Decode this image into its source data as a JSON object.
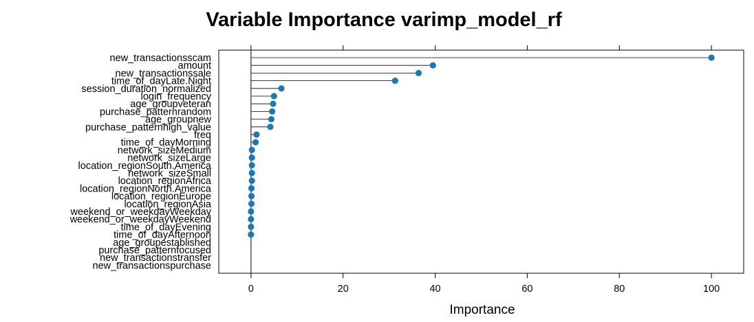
{
  "chart_data": {
    "type": "lollipop",
    "title": "Variable Importance varimp_model_rf",
    "xlabel": "Importance",
    "xlim": [
      -7,
      107
    ],
    "xticks": [
      0,
      20,
      40,
      60,
      80,
      100
    ],
    "point_color": "#1f77b4",
    "grid": false,
    "variables": [
      {
        "name": "new_transactionsscam",
        "value": 100
      },
      {
        "name": "amount",
        "value": 39.5
      },
      {
        "name": "new_transactionssale",
        "value": 36.4
      },
      {
        "name": "time_of_dayLate.Night",
        "value": 31.3
      },
      {
        "name": "session_duration_normalized",
        "value": 6.6
      },
      {
        "name": "login_frequency",
        "value": 5.0
      },
      {
        "name": "age_groupveteran",
        "value": 4.8
      },
      {
        "name": "purchase_patternrandom",
        "value": 4.6
      },
      {
        "name": "age_groupnew",
        "value": 4.4
      },
      {
        "name": "purchase_patternhigh_value",
        "value": 4.2
      },
      {
        "name": "freq",
        "value": 1.2
      },
      {
        "name": "time_of_dayMorning",
        "value": 1.0
      },
      {
        "name": "network_sizeMedium",
        "value": 0.2
      },
      {
        "name": "network_sizeLarge",
        "value": 0.2
      },
      {
        "name": "location_regionSouth.America",
        "value": 0.2
      },
      {
        "name": "network_sizeSmall",
        "value": 0.2
      },
      {
        "name": "location_regionAfrica",
        "value": 0.2
      },
      {
        "name": "location_regionNorth.America",
        "value": 0.1
      },
      {
        "name": "location_regionEurope",
        "value": 0.1
      },
      {
        "name": "location_regionAsia",
        "value": 0.1
      },
      {
        "name": "weekend_or_weekdayWeekday",
        "value": 0.0
      },
      {
        "name": "weekend_or_weekdayWeekend",
        "value": 0.0
      },
      {
        "name": "time_of_dayEvening",
        "value": 0.0
      },
      {
        "name": "time_of_dayAfternoon",
        "value": 0.0
      },
      {
        "name": "age_groupestablished",
        "value": null
      },
      {
        "name": "purchase_patternfocused",
        "value": null
      },
      {
        "name": "new_transactionstransfer",
        "value": null
      },
      {
        "name": "new_transactionspurchase",
        "value": null
      }
    ]
  }
}
